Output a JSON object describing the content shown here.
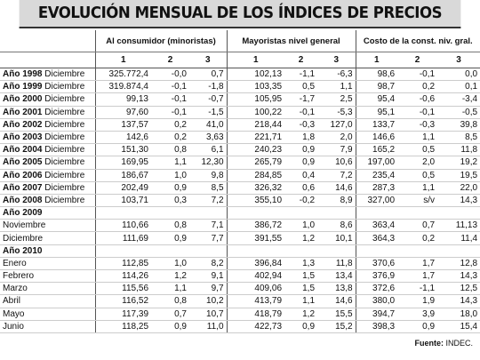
{
  "title": "EVOLUCIÓN MENSUAL DE LOS ÍNDICES DE PRECIOS",
  "groups": [
    "Al consumidor (minoristas)",
    "Mayoristas nivel general",
    "Costo de la const. niv. gral."
  ],
  "subheaders": [
    "1",
    "2",
    "3"
  ],
  "rows": [
    {
      "year": "Año 1998",
      "month": "Diciembre",
      "cells": [
        "325.772,4",
        "-0,0",
        "0,7",
        "102,13",
        "-1,1",
        "-6,3",
        "98,6",
        "-0,1",
        "0,0"
      ]
    },
    {
      "year": "Año 1999",
      "month": "Diciembre",
      "cells": [
        "319.874,4",
        "-0,1",
        "-1,8",
        "103,35",
        "0,5",
        "1,1",
        "98,7",
        "0,2",
        "0,1"
      ]
    },
    {
      "year": "Año 2000",
      "month": "Diciembre",
      "cells": [
        "99,13",
        "-0,1",
        "-0,7",
        "105,95",
        "-1,7",
        "2,5",
        "95,4",
        "-0,6",
        "-3,4"
      ]
    },
    {
      "year": "Año 2001",
      "month": "Diciembre",
      "cells": [
        "97,60",
        "-0,1",
        "-1,5",
        "100,22",
        "-0,1",
        "-5,3",
        "95,1",
        "-0,1",
        "-0,5"
      ]
    },
    {
      "year": "Año 2002",
      "month": "Diciembre",
      "cells": [
        "137,57",
        "0,2",
        "41,0",
        "218,44",
        "-0,3",
        "127,0",
        "133,7",
        "-0,3",
        "39,8"
      ]
    },
    {
      "year": "Año 2003",
      "month": "Diciembre",
      "cells": [
        "142,6",
        "0,2",
        "3,63",
        "221,71",
        "1,8",
        "2,0",
        "146,6",
        "1,1",
        "8,5"
      ]
    },
    {
      "year": "Año 2004",
      "month": "Diciembre",
      "cells": [
        "151,30",
        "0,8",
        "6,1",
        "240,23",
        "0,9",
        "7,9",
        "165,2",
        "0,5",
        "11,8"
      ]
    },
    {
      "year": "Año 2005",
      "month": "Diciembre",
      "cells": [
        "169,95",
        "1,1",
        "12,30",
        "265,79",
        "0,9",
        "10,6",
        "197,00",
        "2,0",
        "19,2"
      ]
    },
    {
      "year": "Año 2006",
      "month": "Diciembre",
      "cells": [
        "186,67",
        "1,0",
        "9,8",
        "284,85",
        "0,4",
        "7,2",
        "235,4",
        "0,5",
        "19,5"
      ]
    },
    {
      "year": "Año 2007",
      "month": "Diciembre",
      "cells": [
        "202,49",
        "0,9",
        "8,5",
        "326,32",
        "0,6",
        "14,6",
        "287,3",
        "1,1",
        "22,0"
      ]
    },
    {
      "year": "Año 2008",
      "month": "Diciembre",
      "cells": [
        "103,71",
        "0,3",
        "7,2",
        "355,10",
        "-0,2",
        "8,9",
        "327,00",
        "s/v",
        "14,3"
      ]
    },
    {
      "section": "Año 2009"
    },
    {
      "month": "Noviembre",
      "cells": [
        "110,66",
        "0,8",
        "7,1",
        "386,72",
        "1,0",
        "8,6",
        "363,4",
        "0,7",
        "11,13"
      ]
    },
    {
      "month": "Diciembre",
      "cells": [
        "111,69",
        "0,9",
        "7,7",
        "391,55",
        "1,2",
        "10,1",
        "364,3",
        "0,2",
        "11,4"
      ]
    },
    {
      "section": "Año 2010"
    },
    {
      "month": "Enero",
      "cells": [
        "112,85",
        "1,0",
        "8,2",
        "396,84",
        "1,3",
        "11,8",
        "370,6",
        "1,7",
        "12,8"
      ]
    },
    {
      "month": "Febrero",
      "cells": [
        "114,26",
        "1,2",
        "9,1",
        "402,94",
        "1,5",
        "13,4",
        "376,9",
        "1,7",
        "14,3"
      ]
    },
    {
      "month": "Marzo",
      "cells": [
        "115,56",
        "1,1",
        "9,7",
        "409,06",
        "1,5",
        "13,8",
        "372,6",
        "-1,1",
        "12,5"
      ]
    },
    {
      "month": "Abril",
      "cells": [
        "116,52",
        "0,8",
        "10,2",
        "413,79",
        "1,1",
        "14,6",
        "380,0",
        "1,9",
        "14,3"
      ]
    },
    {
      "month": "Mayo",
      "cells": [
        "117,39",
        "0,7",
        "10,7",
        "418,79",
        "1,2",
        "15,5",
        "394,7",
        "3,9",
        "18,0"
      ]
    },
    {
      "month": "Junio",
      "cells": [
        "118,25",
        "0,9",
        "11,0",
        "422,73",
        "0,9",
        "15,2",
        "398,3",
        "0,9",
        "15,4"
      ]
    }
  ],
  "footer": {
    "label": "Fuente:",
    "source": "INDEC."
  }
}
